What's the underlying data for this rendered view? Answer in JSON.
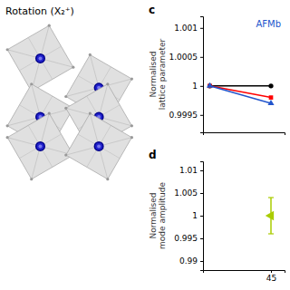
{
  "chart_data": [
    {
      "type": "schematic",
      "title": "Rotation (X₂⁺)"
    },
    {
      "type": "line",
      "title": "c",
      "ylabel": "Normalised\nlattice parameter",
      "x": [
        0,
        45
      ],
      "series": [
        {
          "color": "#000000",
          "marker": "circle",
          "values": [
            1.0,
            1.0
          ]
        },
        {
          "color": "#ff0000",
          "marker": "square",
          "values": [
            1.0,
            0.9998
          ]
        },
        {
          "color": "#2255cc",
          "marker": "triangle",
          "values": [
            1.0,
            0.9997
          ]
        }
      ],
      "annotations": [
        {
          "text": "AFMb",
          "color": "#2255cc"
        }
      ],
      "xlim": [
        -5,
        55
      ],
      "xticks": [],
      "ylim": [
        0.9992,
        1.0012
      ],
      "yticks": [
        0.9995,
        1.0,
        1.0005,
        1.001
      ],
      "tick_labels": "y"
    },
    {
      "type": "errorbar",
      "title": "d",
      "ylabel": "Normalised\nmode amplitude",
      "x": [
        45
      ],
      "values": [
        1.0
      ],
      "errors": [
        0.004
      ],
      "color": "#aacc00",
      "marker": "triangle-left",
      "xlim": [
        -5,
        55
      ],
      "xticks": [
        45
      ],
      "ylim": [
        0.988,
        1.012
      ],
      "yticks": [
        0.99,
        0.995,
        1.0,
        1.005,
        1.01
      ]
    }
  ]
}
